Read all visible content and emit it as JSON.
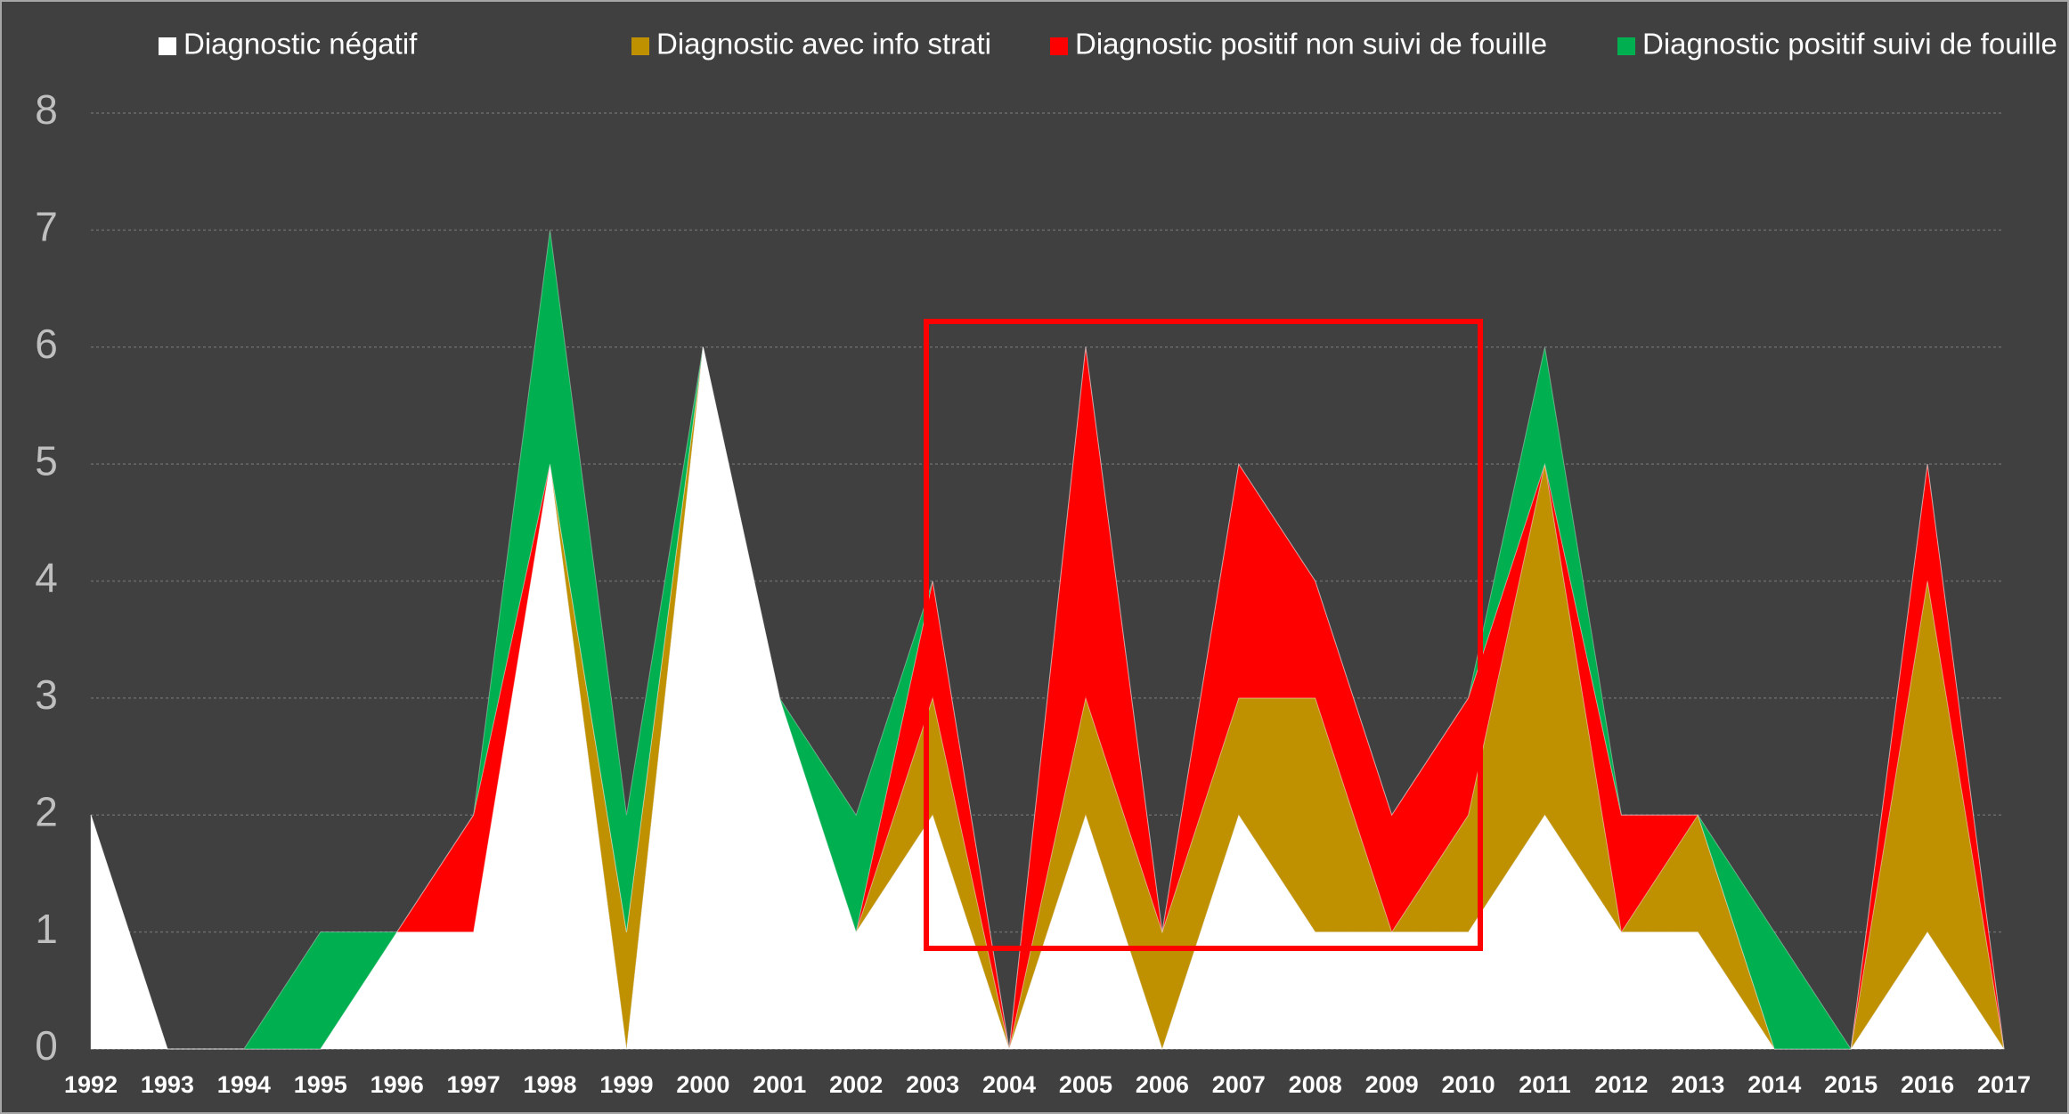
{
  "chart_data": {
    "type": "stacked_area",
    "categories": [
      "1992",
      "1993",
      "1994",
      "1995",
      "1996",
      "1997",
      "1998",
      "1999",
      "2000",
      "2001",
      "2002",
      "2003",
      "2004",
      "2005",
      "2006",
      "2007",
      "2008",
      "2009",
      "2010",
      "2011",
      "2012",
      "2013",
      "2014",
      "2015",
      "2016",
      "2017"
    ],
    "series": [
      {
        "name": "Diagnostic négatif",
        "color": "#ffffff",
        "values": [
          2,
          0,
          0,
          0,
          1,
          1,
          5,
          0,
          6,
          3,
          1,
          2,
          0,
          2,
          0,
          2,
          1,
          1,
          1,
          2,
          1,
          1,
          0,
          0,
          1,
          0
        ]
      },
      {
        "name": "Diagnostic avec info strati",
        "color": "#bf9000",
        "values": [
          0,
          0,
          0,
          0,
          0,
          0,
          0,
          1,
          0,
          0,
          0,
          1,
          0,
          1,
          1,
          1,
          2,
          0,
          1,
          3,
          0,
          1,
          0,
          0,
          3,
          0
        ]
      },
      {
        "name": "Diagnostic positif non suivi de fouille",
        "color": "#ff0000",
        "values": [
          0,
          0,
          0,
          0,
          0,
          1,
          0,
          0,
          0,
          0,
          0,
          1,
          0,
          3,
          0,
          2,
          1,
          1,
          1,
          0,
          1,
          0,
          0,
          0,
          1,
          0
        ]
      },
      {
        "name": "Diagnostic positif suivi de fouille",
        "color": "#00b050",
        "values": [
          0,
          0,
          0,
          1,
          0,
          0,
          2,
          1,
          0,
          0,
          1,
          0,
          0,
          0,
          0,
          0,
          0,
          0,
          0,
          1,
          0,
          0,
          1,
          0,
          0,
          0
        ]
      }
    ],
    "ylim": [
      0,
      8
    ],
    "yticks": [
      0,
      1,
      2,
      3,
      4,
      5,
      6,
      7,
      8
    ],
    "grid": true,
    "legend": "top"
  }
}
